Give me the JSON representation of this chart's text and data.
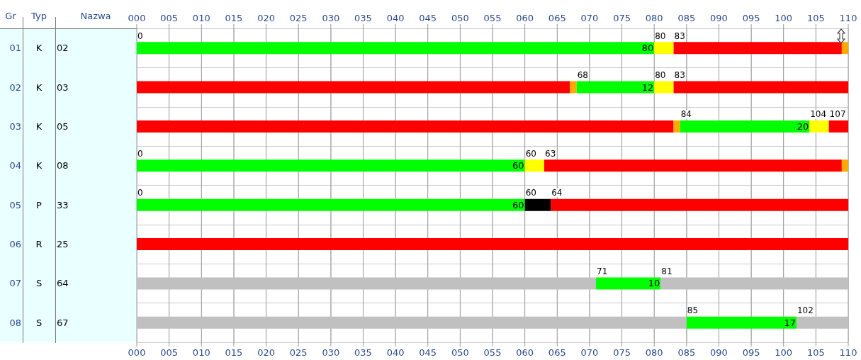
{
  "chart_data": {
    "type": "bar",
    "orientation": "horizontal",
    "stacked": true,
    "categories": [
      "01",
      "02",
      "03",
      "04",
      "05",
      "06",
      "07",
      "08"
    ],
    "series": [
      {
        "values": [
          80,
          67,
          83,
          60,
          60,
          110,
          71,
          85
        ],
        "colors": [
          "#00ff00",
          "#ff0000",
          "#ff0000",
          "#00ff00",
          "#00ff00",
          "#ff0000",
          "#c0c0c0",
          "#c0c0c0"
        ],
        "value_labels": [
          "80",
          null,
          null,
          "60",
          "60",
          null,
          null,
          null
        ]
      },
      {
        "values": [
          3,
          1,
          1,
          3,
          4,
          null,
          10,
          17
        ],
        "colors": [
          "#ffff00",
          "#ffaa00",
          "#ffaa00",
          "#ffff00",
          "#000000",
          null,
          "#00ff00",
          "#00ff00"
        ],
        "value_labels": [
          null,
          null,
          null,
          null,
          null,
          null,
          "10",
          "17"
        ]
      },
      {
        "values": [
          26,
          12,
          20,
          46,
          46,
          null,
          29,
          8
        ],
        "colors": [
          "#ff0000",
          "#00ff00",
          "#00ff00",
          "#ff0000",
          "#ff0000",
          null,
          "#c0c0c0",
          "#c0c0c0"
        ],
        "value_labels": [
          null,
          "12",
          "20",
          null,
          null,
          null,
          null,
          null
        ]
      },
      {
        "values": [
          1,
          3,
          3,
          1,
          null,
          null,
          null,
          null
        ],
        "colors": [
          "#ffaa00",
          "#ffff00",
          "#ffff00",
          "#ffaa00",
          null,
          null,
          null,
          null
        ]
      },
      {
        "values": [
          null,
          27,
          3,
          null,
          null,
          null,
          null,
          null
        ],
        "colors": [
          null,
          "#ff0000",
          "#ff0000",
          null,
          null,
          null,
          null,
          null
        ]
      }
    ],
    "xlim": [
      0,
      110
    ],
    "xticks": [
      {
        "value": 0,
        "label": "000"
      },
      {
        "value": 5,
        "label": "005"
      },
      {
        "value": 10,
        "label": "010"
      },
      {
        "value": 15,
        "label": "015"
      },
      {
        "value": 20,
        "label": "020"
      },
      {
        "value": 25,
        "label": "025"
      },
      {
        "value": 30,
        "label": "030"
      },
      {
        "value": 35,
        "label": "035"
      },
      {
        "value": 40,
        "label": "040"
      },
      {
        "value": 45,
        "label": "045"
      },
      {
        "value": 50,
        "label": "050"
      },
      {
        "value": 55,
        "label": "055"
      },
      {
        "value": 60,
        "label": "060"
      },
      {
        "value": 65,
        "label": "065"
      },
      {
        "value": 70,
        "label": "070"
      },
      {
        "value": 75,
        "label": "075"
      },
      {
        "value": 80,
        "label": "080"
      },
      {
        "value": 85,
        "label": "085"
      },
      {
        "value": 90,
        "label": "090"
      },
      {
        "value": 95,
        "label": "095"
      },
      {
        "value": 100,
        "label": "100"
      },
      {
        "value": 105,
        "label": "105"
      },
      {
        "value": 110,
        "label": "110"
      }
    ],
    "x2lim": [
      0,
      110
    ],
    "x2ticks": [
      {
        "value": 0,
        "label": "000"
      },
      {
        "value": 5,
        "label": "005"
      },
      {
        "value": 10,
        "label": "010"
      },
      {
        "value": 15,
        "label": "015"
      },
      {
        "value": 20,
        "label": "020"
      },
      {
        "value": 25,
        "label": "025"
      },
      {
        "value": 30,
        "label": "030"
      },
      {
        "value": 35,
        "label": "035"
      },
      {
        "value": 40,
        "label": "040"
      },
      {
        "value": 45,
        "label": "045"
      },
      {
        "value": 50,
        "label": "050"
      },
      {
        "value": 55,
        "label": "055"
      },
      {
        "value": 60,
        "label": "060"
      },
      {
        "value": 65,
        "label": "065"
      },
      {
        "value": 70,
        "label": "070"
      },
      {
        "value": 75,
        "label": "075"
      },
      {
        "value": 80,
        "label": "080"
      },
      {
        "value": 85,
        "label": "085"
      },
      {
        "value": 90,
        "label": "090"
      },
      {
        "value": 95,
        "label": "095"
      },
      {
        "value": 100,
        "label": "100"
      },
      {
        "value": 105,
        "label": "105"
      },
      {
        "value": 110,
        "label": "110"
      }
    ],
    "grid": true,
    "annotations": [
      "Gr",
      "Typ",
      "Nazwa",
      "K",
      "02",
      "K",
      "03",
      "K",
      "05",
      "K",
      "08",
      "P",
      "33",
      "R",
      "25",
      "S",
      "64",
      "S",
      "67",
      {
        "text": "0",
        "x": 0,
        "y": "01"
      },
      {
        "text": "80",
        "x": 80,
        "y": "01"
      },
      {
        "text": "83",
        "x": 83,
        "y": "01"
      },
      {
        "text": "68",
        "x": 68,
        "y": "02"
      },
      {
        "text": "80",
        "x": 80,
        "y": "02"
      },
      {
        "text": "83",
        "x": 83,
        "y": "02"
      },
      {
        "text": "84",
        "x": 84,
        "y": "03"
      },
      {
        "text": "104",
        "x": 104,
        "y": "03"
      },
      {
        "text": "107",
        "x": 107,
        "y": "03"
      },
      {
        "text": "0",
        "x": 0,
        "y": "04"
      },
      {
        "text": "60",
        "x": 60,
        "y": "04"
      },
      {
        "text": "63",
        "x": 63,
        "y": "04"
      },
      {
        "text": "0",
        "x": 0,
        "y": "05"
      },
      {
        "text": "60",
        "x": 60,
        "y": "05"
      },
      {
        "text": "64",
        "x": 64,
        "y": "05"
      },
      {
        "text": "71",
        "x": 71,
        "y": "07"
      },
      {
        "text": "81",
        "x": 81,
        "y": "07"
      },
      {
        "text": "85",
        "x": 85,
        "y": "08"
      },
      {
        "text": "102",
        "x": 102,
        "y": "08"
      }
    ]
  }
}
